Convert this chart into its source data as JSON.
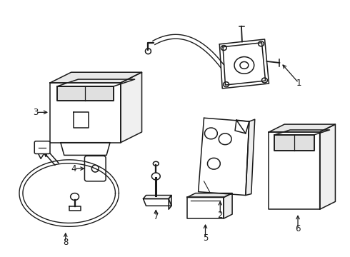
{
  "background_color": "#ffffff",
  "line_color": "#1a1a1a",
  "line_width": 1.1,
  "fig_width": 4.9,
  "fig_height": 3.6,
  "dpi": 100
}
